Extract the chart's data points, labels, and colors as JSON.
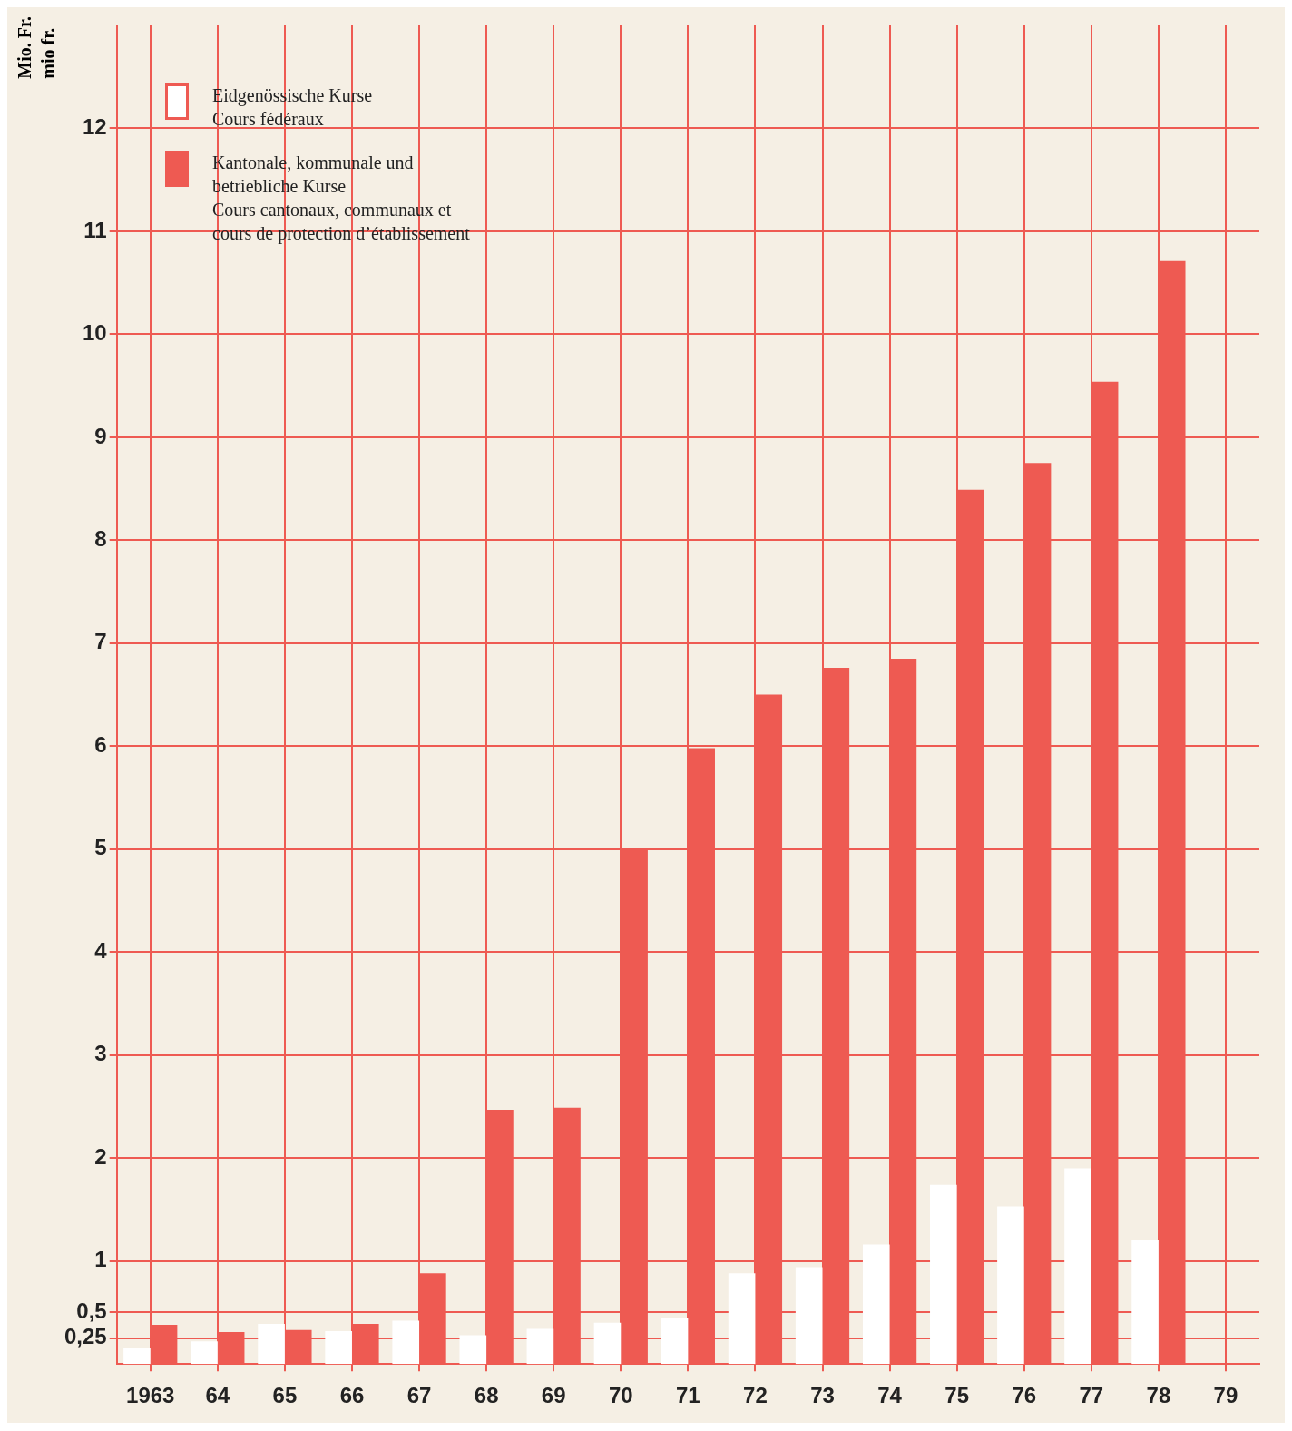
{
  "chart_data": {
    "type": "bar",
    "ylabel": "Mio. Fr.\nmio fr.",
    "categories": [
      "1963",
      "64",
      "65",
      "66",
      "67",
      "68",
      "69",
      "70",
      "71",
      "72",
      "73",
      "74",
      "75",
      "76",
      "77",
      "78",
      "79"
    ],
    "series": [
      {
        "name": "Eidgenössische Kurse\nCours fédéraux",
        "color": "#ffffff",
        "values": [
          0.16,
          0.22,
          0.39,
          0.32,
          0.42,
          0.28,
          0.34,
          0.4,
          0.45,
          0.88,
          0.94,
          1.16,
          1.74,
          1.53,
          1.9,
          1.2,
          null
        ]
      },
      {
        "name": "Kantonale, kommunale und\nbetriebliche Kurse\nCours cantonaux, communaux et\ncours de protection d’établissement",
        "color": "#ee5a52",
        "values": [
          0.38,
          0.31,
          0.33,
          0.39,
          0.88,
          2.47,
          2.49,
          4.99,
          5.98,
          6.5,
          6.76,
          6.85,
          8.49,
          8.75,
          9.54,
          10.71,
          null
        ]
      }
    ],
    "ylim": [
      0,
      13
    ],
    "yticks": [
      {
        "value": 0.25,
        "label": "0,25"
      },
      {
        "value": 0.5,
        "label": "0,5"
      },
      1,
      2,
      3,
      4,
      5,
      6,
      7,
      8,
      9,
      10,
      11,
      12
    ],
    "grid": true,
    "legend": "top left"
  }
}
